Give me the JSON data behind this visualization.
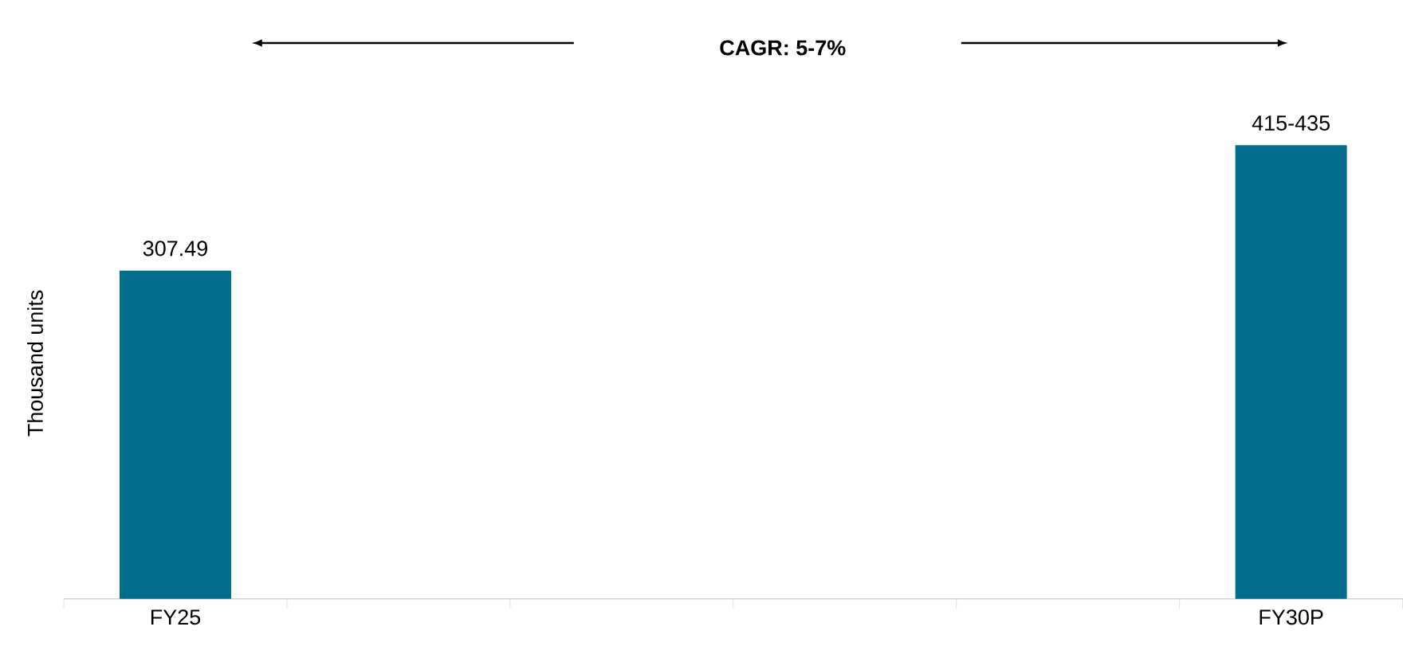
{
  "chart_data": {
    "type": "bar",
    "ylabel": "Thousand units",
    "annotations": [
      "CAGR: 5-7%"
    ],
    "categories": [
      "FY25",
      null,
      null,
      null,
      null,
      "FY30P"
    ],
    "values": [
      307.49,
      null,
      null,
      null,
      null,
      425
    ],
    "value_labels": [
      "307.49",
      null,
      null,
      null,
      null,
      "415-435"
    ],
    "color": "#006e8a"
  }
}
